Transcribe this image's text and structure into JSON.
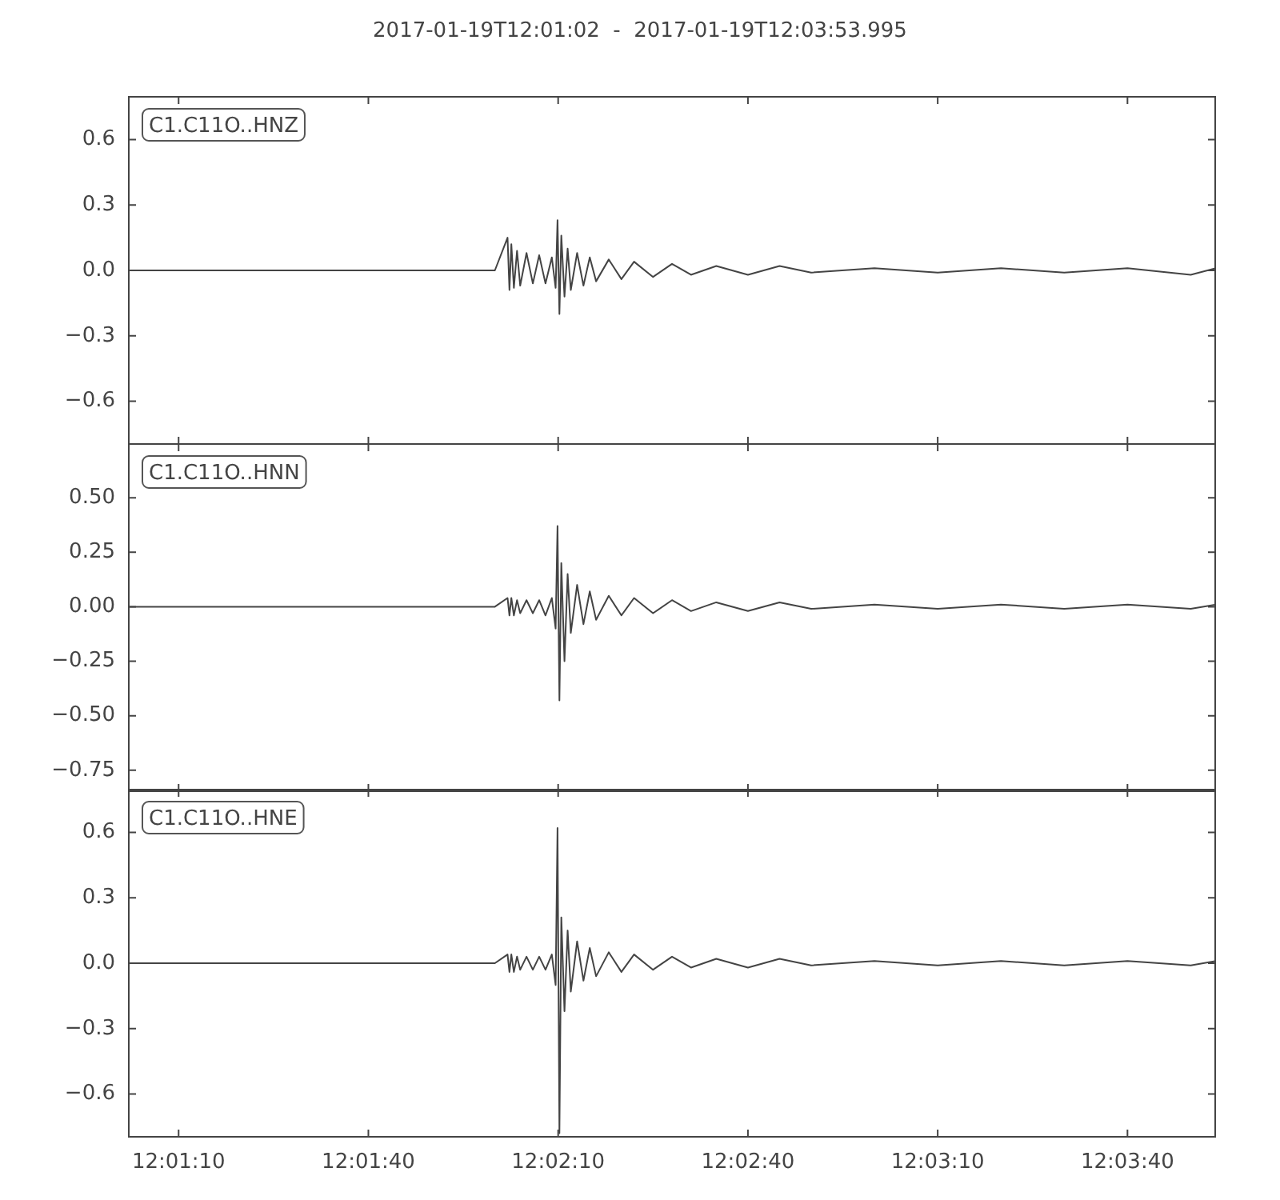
{
  "chart_data": [
    {
      "type": "line",
      "title": "2017-01-19T12:01:02  -  2017-01-19T12:03:53.995",
      "annotations": [
        "C1.C11O..HNZ"
      ],
      "tick_labels": "y",
      "x": [
        "2017-01-19T12:01:02",
        "2017-01-19T12:01:20",
        "2017-01-19T12:01:40",
        "2017-01-19T12:02:00",
        "2017-01-19T12:02:02.0",
        "2017-01-19T12:02:02.3",
        "2017-01-19T12:02:02.6",
        "2017-01-19T12:02:03.0",
        "2017-01-19T12:02:03.5",
        "2017-01-19T12:02:04",
        "2017-01-19T12:02:05",
        "2017-01-19T12:02:06",
        "2017-01-19T12:02:07",
        "2017-01-19T12:02:08",
        "2017-01-19T12:02:09",
        "2017-01-19T12:02:09.6",
        "2017-01-19T12:02:09.9",
        "2017-01-19T12:02:10.2",
        "2017-01-19T12:02:10.5",
        "2017-01-19T12:02:11",
        "2017-01-19T12:02:11.5",
        "2017-01-19T12:02:12",
        "2017-01-19T12:02:13",
        "2017-01-19T12:02:14",
        "2017-01-19T12:02:15",
        "2017-01-19T12:02:16",
        "2017-01-19T12:02:18",
        "2017-01-19T12:02:20",
        "2017-01-19T12:02:22",
        "2017-01-19T12:02:25",
        "2017-01-19T12:02:28",
        "2017-01-19T12:02:31",
        "2017-01-19T12:02:35",
        "2017-01-19T12:02:40",
        "2017-01-19T12:02:45",
        "2017-01-19T12:02:50",
        "2017-01-19T12:03:00",
        "2017-01-19T12:03:10",
        "2017-01-19T12:03:20",
        "2017-01-19T12:03:30",
        "2017-01-19T12:03:40",
        "2017-01-19T12:03:50",
        "2017-01-19T12:03:53.995"
      ],
      "series": [
        {
          "color": "#444444",
          "values": [
            0,
            0,
            0,
            0,
            0.15,
            -0.09,
            0.12,
            -0.08,
            0.09,
            -0.07,
            0.08,
            -0.06,
            0.07,
            -0.06,
            0.06,
            -0.08,
            0.23,
            -0.2,
            0.16,
            -0.12,
            0.1,
            -0.09,
            0.08,
            -0.07,
            0.06,
            -0.05,
            0.05,
            -0.04,
            0.04,
            -0.03,
            0.03,
            -0.02,
            0.02,
            -0.02,
            0.02,
            -0.01,
            0.01,
            -0.01,
            0.01,
            -0.01,
            0.01,
            -0.02,
            0.01
          ]
        }
      ],
      "xlim": [
        "2017-01-19T12:01:02",
        "2017-01-19T12:03:53.995"
      ],
      "xticks": [
        {
          "value": "2017-01-19T12:01:10",
          "label": null
        },
        {
          "value": "2017-01-19T12:01:40",
          "label": null
        },
        {
          "value": "2017-01-19T12:02:10",
          "label": null
        },
        {
          "value": "2017-01-19T12:02:40",
          "label": null
        },
        {
          "value": "2017-01-19T12:03:10",
          "label": null
        },
        {
          "value": "2017-01-19T12:03:40",
          "label": null
        }
      ],
      "ylim": [
        -0.8,
        0.8
      ],
      "yticks": [
        {
          "value": 0.6,
          "label": "0.6"
        },
        {
          "value": 0.3,
          "label": "0.3"
        },
        {
          "value": 0,
          "label": "0.0"
        },
        {
          "value": -0.3,
          "label": "−0.3"
        },
        {
          "value": -0.6,
          "label": "−0.6"
        }
      ]
    },
    {
      "type": "line",
      "annotations": [
        "C1.C11O..HNN"
      ],
      "tick_labels": "y",
      "x": [
        "2017-01-19T12:01:02",
        "2017-01-19T12:01:20",
        "2017-01-19T12:01:40",
        "2017-01-19T12:02:00",
        "2017-01-19T12:02:02.0",
        "2017-01-19T12:02:02.3",
        "2017-01-19T12:02:02.6",
        "2017-01-19T12:02:03.0",
        "2017-01-19T12:02:03.5",
        "2017-01-19T12:02:04",
        "2017-01-19T12:02:05",
        "2017-01-19T12:02:06",
        "2017-01-19T12:02:07",
        "2017-01-19T12:02:08",
        "2017-01-19T12:02:09",
        "2017-01-19T12:02:09.6",
        "2017-01-19T12:02:09.9",
        "2017-01-19T12:02:10.2",
        "2017-01-19T12:02:10.5",
        "2017-01-19T12:02:11",
        "2017-01-19T12:02:11.5",
        "2017-01-19T12:02:12",
        "2017-01-19T12:02:13",
        "2017-01-19T12:02:14",
        "2017-01-19T12:02:15",
        "2017-01-19T12:02:16",
        "2017-01-19T12:02:18",
        "2017-01-19T12:02:20",
        "2017-01-19T12:02:22",
        "2017-01-19T12:02:25",
        "2017-01-19T12:02:28",
        "2017-01-19T12:02:31",
        "2017-01-19T12:02:35",
        "2017-01-19T12:02:40",
        "2017-01-19T12:02:45",
        "2017-01-19T12:02:50",
        "2017-01-19T12:03:00",
        "2017-01-19T12:03:10",
        "2017-01-19T12:03:20",
        "2017-01-19T12:03:30",
        "2017-01-19T12:03:40",
        "2017-01-19T12:03:50",
        "2017-01-19T12:03:53.995"
      ],
      "series": [
        {
          "color": "#444444",
          "values": [
            0,
            0,
            0,
            0,
            0.04,
            -0.04,
            0.04,
            -0.04,
            0.03,
            -0.03,
            0.03,
            -0.03,
            0.03,
            -0.04,
            0.04,
            -0.1,
            0.37,
            -0.43,
            0.2,
            -0.25,
            0.15,
            -0.12,
            0.1,
            -0.08,
            0.07,
            -0.06,
            0.05,
            -0.04,
            0.04,
            -0.03,
            0.03,
            -0.02,
            0.02,
            -0.02,
            0.02,
            -0.01,
            0.01,
            -0.01,
            0.01,
            -0.01,
            0.01,
            -0.01,
            0.01
          ]
        }
      ],
      "xlim": [
        "2017-01-19T12:01:02",
        "2017-01-19T12:03:53.995"
      ],
      "xticks": [
        {
          "value": "2017-01-19T12:01:10",
          "label": null
        },
        {
          "value": "2017-01-19T12:01:40",
          "label": null
        },
        {
          "value": "2017-01-19T12:02:10",
          "label": null
        },
        {
          "value": "2017-01-19T12:02:40",
          "label": null
        },
        {
          "value": "2017-01-19T12:03:10",
          "label": null
        },
        {
          "value": "2017-01-19T12:03:40",
          "label": null
        }
      ],
      "ylim": [
        -0.85,
        0.75
      ],
      "yticks": [
        {
          "value": 0.5,
          "label": "0.50"
        },
        {
          "value": 0.25,
          "label": "0.25"
        },
        {
          "value": 0,
          "label": "0.00"
        },
        {
          "value": -0.25,
          "label": "−0.25"
        },
        {
          "value": -0.5,
          "label": "−0.50"
        },
        {
          "value": -0.75,
          "label": "−0.75"
        }
      ]
    },
    {
      "type": "line",
      "annotations": [
        "C1.C11O..HNE"
      ],
      "x": [
        "2017-01-19T12:01:02",
        "2017-01-19T12:01:20",
        "2017-01-19T12:01:40",
        "2017-01-19T12:02:00",
        "2017-01-19T12:02:02.0",
        "2017-01-19T12:02:02.3",
        "2017-01-19T12:02:02.6",
        "2017-01-19T12:02:03.0",
        "2017-01-19T12:02:03.5",
        "2017-01-19T12:02:04",
        "2017-01-19T12:02:05",
        "2017-01-19T12:02:06",
        "2017-01-19T12:02:07",
        "2017-01-19T12:02:08",
        "2017-01-19T12:02:09",
        "2017-01-19T12:02:09.6",
        "2017-01-19T12:02:09.9",
        "2017-01-19T12:02:10.2",
        "2017-01-19T12:02:10.5",
        "2017-01-19T12:02:11",
        "2017-01-19T12:02:11.5",
        "2017-01-19T12:02:12",
        "2017-01-19T12:02:13",
        "2017-01-19T12:02:14",
        "2017-01-19T12:02:15",
        "2017-01-19T12:02:16",
        "2017-01-19T12:02:18",
        "2017-01-19T12:02:20",
        "2017-01-19T12:02:22",
        "2017-01-19T12:02:25",
        "2017-01-19T12:02:28",
        "2017-01-19T12:02:31",
        "2017-01-19T12:02:35",
        "2017-01-19T12:02:40",
        "2017-01-19T12:02:45",
        "2017-01-19T12:02:50",
        "2017-01-19T12:03:00",
        "2017-01-19T12:03:10",
        "2017-01-19T12:03:20",
        "2017-01-19T12:03:30",
        "2017-01-19T12:03:40",
        "2017-01-19T12:03:50",
        "2017-01-19T12:03:53.995"
      ],
      "series": [
        {
          "color": "#444444",
          "values": [
            0,
            0,
            0,
            0,
            0.04,
            -0.04,
            0.04,
            -0.04,
            0.03,
            -0.03,
            0.03,
            -0.03,
            0.03,
            -0.03,
            0.04,
            -0.1,
            0.62,
            -0.78,
            0.21,
            -0.22,
            0.15,
            -0.13,
            0.1,
            -0.08,
            0.07,
            -0.06,
            0.05,
            -0.04,
            0.04,
            -0.03,
            0.03,
            -0.02,
            0.02,
            -0.02,
            0.02,
            -0.01,
            0.01,
            -0.01,
            0.01,
            -0.01,
            0.01,
            -0.01,
            0.01
          ]
        }
      ],
      "xlim": [
        "2017-01-19T12:01:02",
        "2017-01-19T12:03:53.995"
      ],
      "xticks": [
        {
          "value": "2017-01-19T12:01:10",
          "label": "12:01:10"
        },
        {
          "value": "2017-01-19T12:01:40",
          "label": "12:01:40"
        },
        {
          "value": "2017-01-19T12:02:10",
          "label": "12:02:10"
        },
        {
          "value": "2017-01-19T12:02:40",
          "label": "12:02:40"
        },
        {
          "value": "2017-01-19T12:03:10",
          "label": "12:03:10"
        },
        {
          "value": "2017-01-19T12:03:40",
          "label": "12:03:40"
        }
      ],
      "ylim": [
        -0.8,
        0.8
      ],
      "yticks": [
        {
          "value": 0.6,
          "label": "0.6"
        },
        {
          "value": 0.3,
          "label": "0.3"
        },
        {
          "value": 0,
          "label": "0.0"
        },
        {
          "value": -0.3,
          "label": "−0.3"
        },
        {
          "value": -0.6,
          "label": "−0.6"
        }
      ]
    }
  ]
}
